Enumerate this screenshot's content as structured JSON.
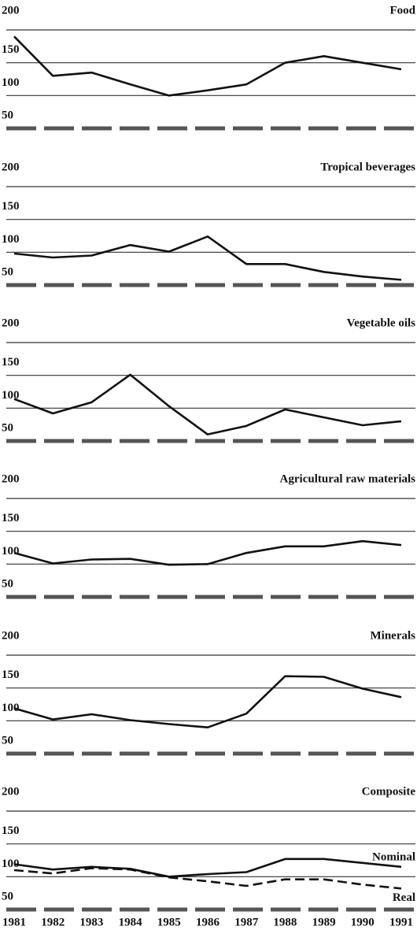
{
  "chart_data": [
    {
      "type": "line",
      "title": "Food",
      "ylim": [
        50,
        200
      ],
      "yticks": [
        50,
        100,
        150,
        200
      ],
      "values": [
        190,
        130,
        135,
        117,
        100,
        108,
        117,
        150,
        160,
        150,
        140
      ]
    },
    {
      "type": "line",
      "title": "Tropical beverages",
      "ylim": [
        50,
        200
      ],
      "yticks": [
        50,
        100,
        150,
        200
      ],
      "values": [
        98,
        92,
        95,
        111,
        101,
        124,
        82,
        82,
        70,
        63,
        58
      ]
    },
    {
      "type": "line",
      "title": "Vegetable oils",
      "ylim": [
        50,
        200
      ],
      "yticks": [
        50,
        100,
        150,
        200
      ],
      "values": [
        114,
        92,
        109,
        151,
        103,
        60,
        73,
        98,
        86,
        74,
        80
      ]
    },
    {
      "type": "line",
      "title": "Agricultural raw materials",
      "ylim": [
        50,
        200
      ],
      "yticks": [
        50,
        100,
        150,
        200
      ],
      "values": [
        117,
        101,
        107,
        108,
        99,
        100,
        117,
        127,
        127,
        135,
        129
      ]
    },
    {
      "type": "line",
      "title": "Minerals",
      "ylim": [
        50,
        200
      ],
      "yticks": [
        50,
        100,
        150,
        200
      ],
      "values": [
        119,
        102,
        110,
        101,
        95,
        90,
        111,
        168,
        167,
        149,
        136
      ]
    },
    {
      "type": "line",
      "title": "Composite",
      "ylim": [
        50,
        200
      ],
      "yticks": [
        50,
        100,
        150,
        200
      ],
      "categories": [
        1981,
        1982,
        1983,
        1984,
        1985,
        1986,
        1987,
        1988,
        1989,
        1990,
        1991
      ],
      "series": [
        {
          "name": "Nominal",
          "dashed": false,
          "values": [
            119,
            111,
            115,
            112,
            100,
            104,
            107,
            127,
            127,
            121,
            115
          ]
        },
        {
          "name": "Real",
          "dashed": true,
          "values": [
            110,
            105,
            113,
            111,
            99,
            93,
            86,
            96,
            96,
            88,
            82
          ]
        }
      ]
    }
  ]
}
